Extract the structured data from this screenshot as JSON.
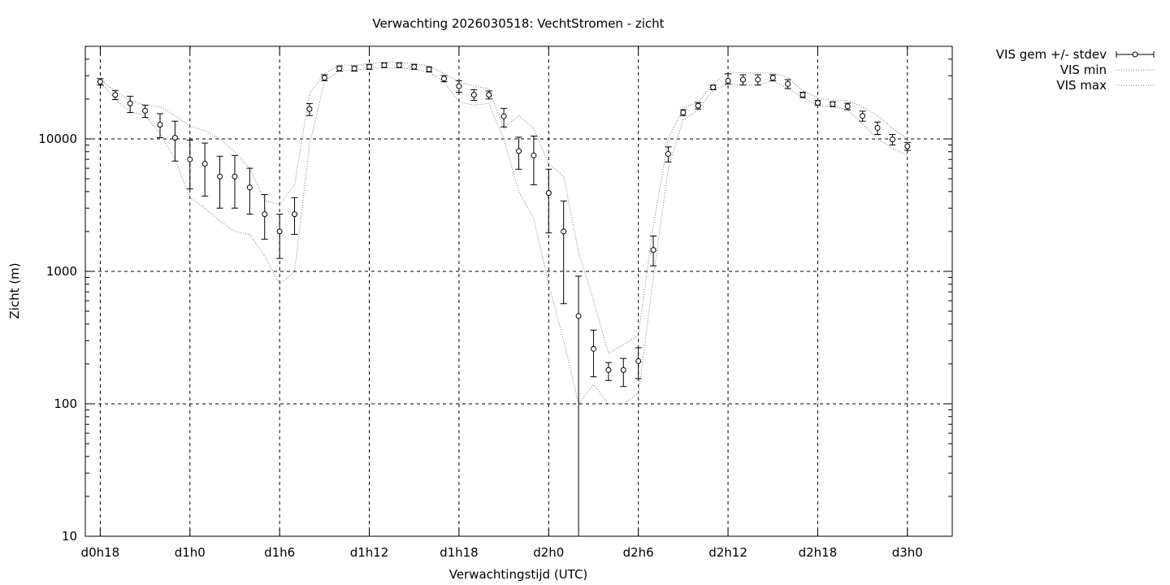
{
  "chart_data": {
    "type": "scatter",
    "title": "Verwachting 2026030518: VechtStromen - zicht",
    "xlabel": "Verwachtingstijd (UTC)",
    "ylabel": "Zicht (m)",
    "y_scale": "log",
    "ylim": [
      10,
      50000
    ],
    "xlim": [
      -1,
      57
    ],
    "x_unit": "hours after d0h18",
    "grid": true,
    "legend_position": "outside-top-right",
    "x_ticks": [
      {
        "x": 0,
        "label": "d0h18"
      },
      {
        "x": 6,
        "label": "d1h0"
      },
      {
        "x": 12,
        "label": "d1h6"
      },
      {
        "x": 18,
        "label": "d1h12"
      },
      {
        "x": 24,
        "label": "d1h18"
      },
      {
        "x": 30,
        "label": "d2h0"
      },
      {
        "x": 36,
        "label": "d2h6"
      },
      {
        "x": 42,
        "label": "d2h12"
      },
      {
        "x": 48,
        "label": "d2h18"
      },
      {
        "x": 54,
        "label": "d3h0"
      }
    ],
    "y_ticks": [
      {
        "y": 10,
        "label": "10"
      },
      {
        "y": 100,
        "label": "100"
      },
      {
        "y": 1000,
        "label": "1000"
      },
      {
        "y": 10000,
        "label": "10000"
      }
    ],
    "series": [
      {
        "name": "VIS gem +/- stdev",
        "style": "points-errorbars",
        "x": [
          0,
          1,
          2,
          3,
          4,
          5,
          6,
          7,
          8,
          9,
          10,
          11,
          12,
          13,
          14,
          15,
          16,
          17,
          18,
          19,
          20,
          21,
          22,
          23,
          24,
          25,
          26,
          27,
          28,
          29,
          30,
          31,
          32,
          33,
          34,
          35,
          36,
          37,
          38,
          39,
          40,
          41,
          42,
          43,
          44,
          45,
          46,
          47,
          48,
          49,
          50,
          51,
          52,
          53,
          54
        ],
        "y": [
          27000,
          21500,
          18500,
          16300,
          12800,
          10200,
          7000,
          6500,
          5200,
          5200,
          4300,
          2700,
          2000,
          2700,
          16800,
          29000,
          34000,
          34000,
          35000,
          36000,
          36000,
          35000,
          33500,
          28500,
          25000,
          21500,
          21500,
          14800,
          8100,
          7500,
          3900,
          2000,
          460,
          260,
          180,
          180,
          210,
          1450,
          7700,
          15800,
          17800,
          24500,
          27500,
          28000,
          28000,
          28900,
          26000,
          21500,
          18700,
          18300,
          17600,
          14900,
          12100,
          9900,
          8800
        ],
        "low": [
          25500,
          19800,
          15800,
          14500,
          10200,
          6800,
          4200,
          3700,
          3000,
          3000,
          2700,
          1750,
          1250,
          1900,
          15000,
          27500,
          32500,
          32500,
          33500,
          34500,
          34500,
          33500,
          32000,
          27000,
          22500,
          19500,
          20000,
          12300,
          5900,
          4500,
          1950,
          570,
          0.1,
          160,
          150,
          135,
          155,
          1100,
          6700,
          15000,
          16800,
          23500,
          26000,
          25500,
          25500,
          27500,
          24000,
          20500,
          18000,
          17500,
          16600,
          13600,
          10800,
          9000,
          8200
        ],
        "high": [
          28500,
          23200,
          21000,
          18000,
          15500,
          13600,
          9800,
          9300,
          7400,
          7500,
          6000,
          3800,
          2700,
          3600,
          18500,
          30500,
          35500,
          35500,
          36500,
          37500,
          37500,
          36500,
          35000,
          30000,
          27500,
          23500,
          23000,
          17000,
          10300,
          10500,
          5900,
          3400,
          920,
          360,
          205,
          220,
          265,
          1850,
          8700,
          16600,
          18800,
          25500,
          31000,
          30500,
          30500,
          30500,
          28000,
          22500,
          19500,
          19000,
          18600,
          16200,
          13400,
          10800,
          9400
        ]
      },
      {
        "name": "VIS min",
        "style": "dotted-line",
        "x": [
          0,
          1,
          2,
          3,
          4,
          5,
          6,
          7,
          8,
          9,
          10,
          11,
          12,
          13,
          14,
          15,
          16,
          17,
          18,
          19,
          20,
          21,
          22,
          23,
          24,
          25,
          26,
          27,
          28,
          29,
          30,
          31,
          32,
          33,
          34,
          35,
          36,
          37,
          38,
          39,
          40,
          41,
          42,
          43,
          44,
          45,
          46,
          47,
          48,
          49,
          50,
          51,
          52,
          53,
          54
        ],
        "y": [
          27000,
          20000,
          16000,
          15000,
          11000,
          7000,
          3600,
          3000,
          2400,
          2000,
          1900,
          1300,
          800,
          1000,
          9000,
          27000,
          33000,
          33000,
          34000,
          34500,
          34500,
          33500,
          32000,
          27000,
          19000,
          18000,
          18500,
          10000,
          4000,
          2500,
          800,
          300,
          100,
          140,
          100,
          100,
          120,
          900,
          6000,
          14000,
          16500,
          23500,
          26000,
          25500,
          25500,
          27500,
          24000,
          20500,
          18000,
          17500,
          16600,
          13000,
          10000,
          8500,
          7500
        ]
      },
      {
        "name": "VIS max",
        "style": "dotted-line",
        "x": [
          0,
          1,
          2,
          3,
          4,
          5,
          6,
          7,
          8,
          9,
          10,
          11,
          12,
          13,
          14,
          15,
          16,
          17,
          18,
          19,
          20,
          21,
          22,
          23,
          24,
          25,
          26,
          27,
          28,
          29,
          30,
          31,
          32,
          33,
          34,
          35,
          36,
          37,
          38,
          39,
          40,
          41,
          42,
          43,
          44,
          45,
          46,
          47,
          48,
          49,
          50,
          51,
          52,
          53,
          54
        ],
        "y": [
          28000,
          23000,
          19500,
          18000,
          17500,
          15000,
          12500,
          11500,
          10000,
          8000,
          6000,
          3400,
          3200,
          4500,
          22000,
          31000,
          36000,
          36000,
          37000,
          38000,
          38000,
          37000,
          35500,
          31000,
          27000,
          25000,
          24000,
          12000,
          15000,
          12000,
          6500,
          5200,
          1400,
          600,
          240,
          280,
          330,
          2200,
          10000,
          17000,
          19000,
          26000,
          32000,
          31500,
          31500,
          31500,
          29000,
          23000,
          20500,
          19500,
          19500,
          17500,
          15000,
          12000,
          10000
        ]
      }
    ]
  }
}
